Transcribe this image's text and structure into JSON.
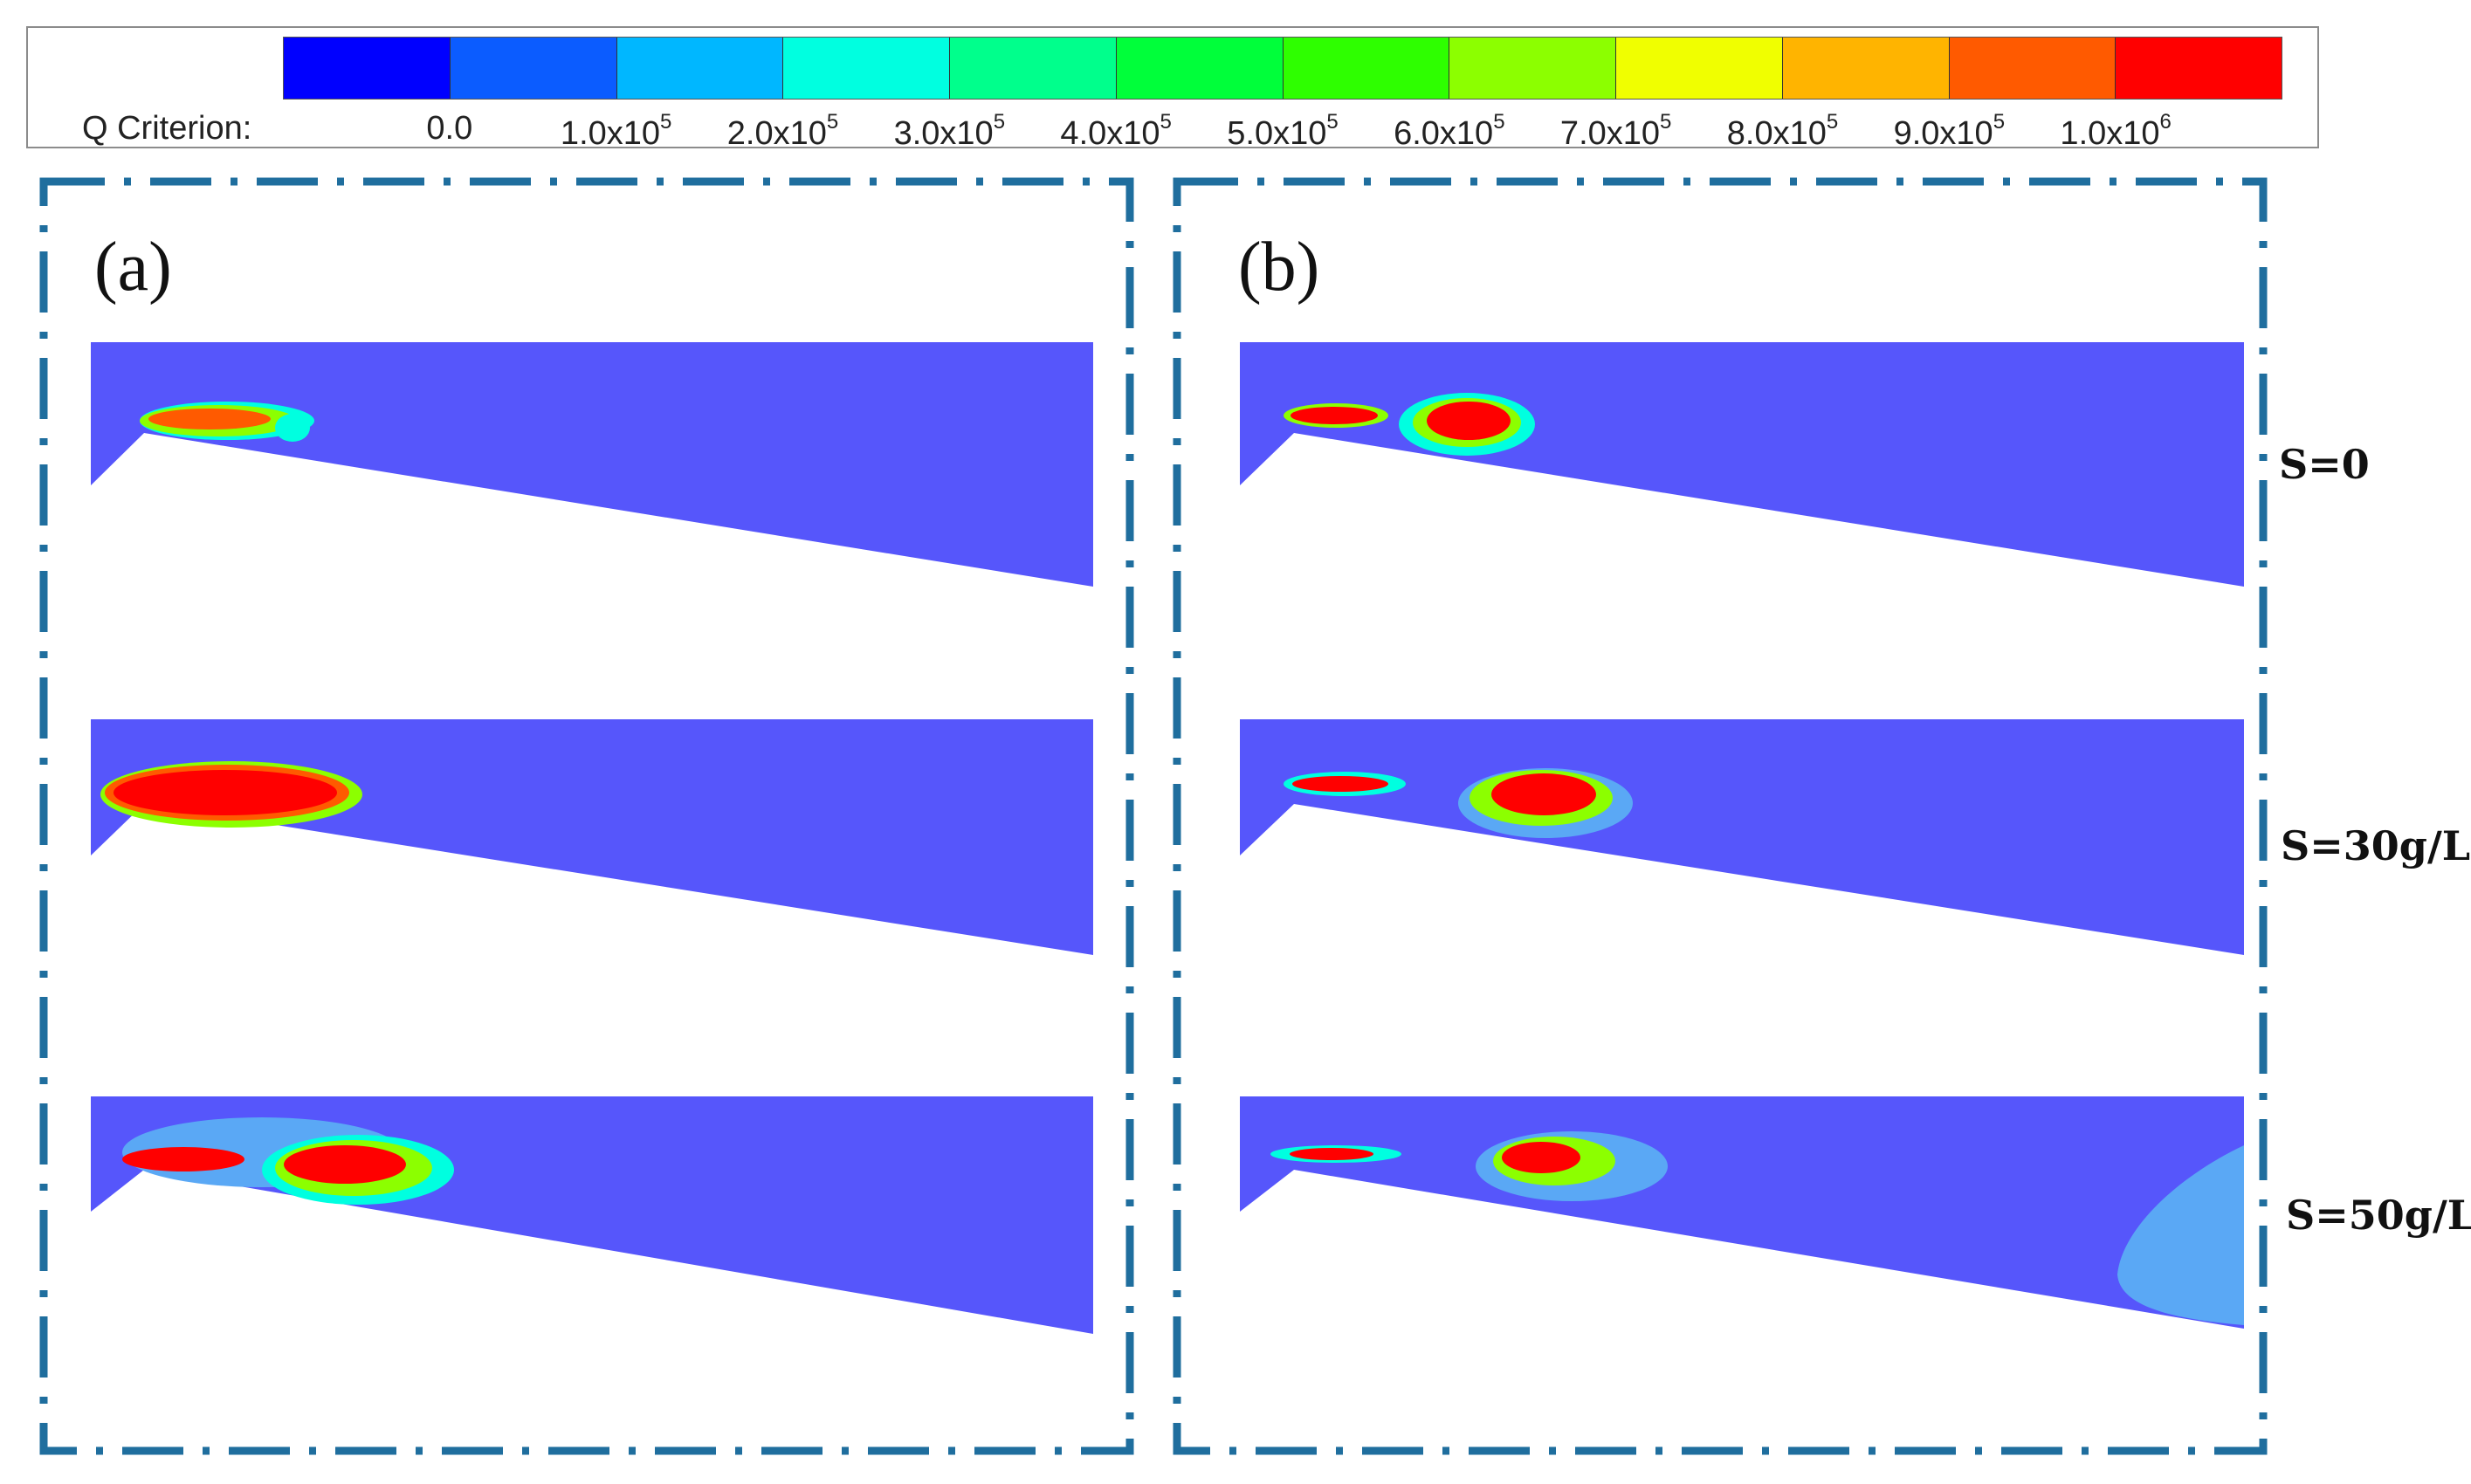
{
  "legend": {
    "title": "Q Criterion:",
    "colors": [
      "#0000ff",
      "#0b5cff",
      "#00b7ff",
      "#00ffe0",
      "#00ff8c",
      "#00ff3a",
      "#2eff00",
      "#8cff00",
      "#f0ff00",
      "#ffb400",
      "#ff5a00",
      "#ff0000"
    ],
    "ticks": [
      {
        "mant": "0.0",
        "exp": ""
      },
      {
        "mant": "1.0x10",
        "exp": "5"
      },
      {
        "mant": "2.0x10",
        "exp": "5"
      },
      {
        "mant": "3.0x10",
        "exp": "5"
      },
      {
        "mant": "4.0x10",
        "exp": "5"
      },
      {
        "mant": "5.0x10",
        "exp": "5"
      },
      {
        "mant": "6.0x10",
        "exp": "5"
      },
      {
        "mant": "7.0x10",
        "exp": "5"
      },
      {
        "mant": "8.0x10",
        "exp": "5"
      },
      {
        "mant": "9.0x10",
        "exp": "5"
      },
      {
        "mant": "1.0x10",
        "exp": "6"
      }
    ]
  },
  "panels": {
    "a": {
      "label": "(a)"
    },
    "b": {
      "label": "(b)"
    }
  },
  "rows": [
    {
      "label": "S=0"
    },
    {
      "label": "S=30g/L"
    },
    {
      "label": "S=50g/L"
    }
  ],
  "colors": {
    "background_flow": "#5656fb",
    "frame": "#1f6e9e",
    "low_q_region": "#5aa8f5"
  }
}
